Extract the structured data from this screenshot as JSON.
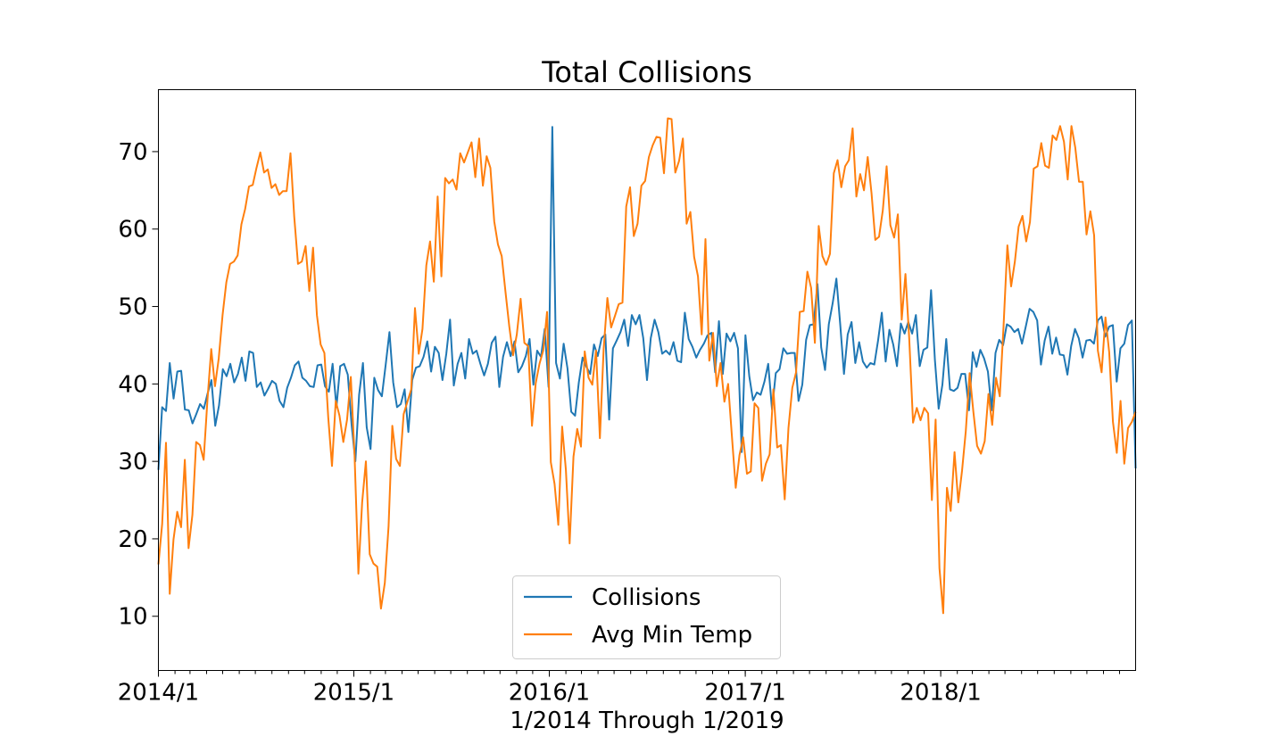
{
  "chart_data": {
    "type": "line",
    "title": "Total Collisions",
    "xlabel": "1/2014 Through 1/2019",
    "ylabel": "",
    "x_start": "2014-01-01",
    "x_end": "2018-12-31",
    "sample_interval": "weekly",
    "ylim": [
      3,
      78
    ],
    "yticks": [
      10,
      20,
      30,
      40,
      50,
      60,
      70
    ],
    "xticks": [
      {
        "label": "2014/1",
        "date": "2014-01-01"
      },
      {
        "label": "2015/1",
        "date": "2015-01-01"
      },
      {
        "label": "2016/1",
        "date": "2016-01-01"
      },
      {
        "label": "2017/1",
        "date": "2017-01-01"
      },
      {
        "label": "2018/1",
        "date": "2018-01-01"
      }
    ],
    "grid": false,
    "legend_position": "bottom-center",
    "series": [
      {
        "name": "Collisions",
        "color": "#1f77b4",
        "values": [
          28.9,
          37.0,
          36.5,
          42.7,
          38.1,
          41.6,
          41.7,
          36.7,
          36.6,
          34.9,
          36.1,
          37.4,
          36.8,
          38.8,
          40.5,
          34.6,
          37.2,
          41.9,
          41.0,
          42.6,
          40.2,
          41.3,
          43.4,
          40.4,
          44.2,
          44.0,
          39.6,
          40.2,
          38.5,
          39.4,
          40.4,
          40.0,
          37.8,
          37.0,
          39.5,
          40.8,
          42.4,
          42.9,
          40.8,
          40.4,
          39.7,
          39.6,
          42.4,
          42.5,
          39.7,
          39.0,
          42.6,
          37.0,
          42.3,
          42.6,
          41.2,
          34.7,
          30.0,
          38.6,
          42.7,
          34.4,
          31.6,
          40.8,
          39.2,
          38.4,
          42.5,
          46.7,
          40.2,
          37.0,
          37.4,
          39.3,
          33.8,
          40.5,
          42.1,
          42.3,
          43.5,
          45.5,
          41.6,
          44.8,
          44.0,
          40.5,
          43.9,
          48.3,
          39.8,
          42.6,
          44.0,
          40.7,
          45.8,
          43.9,
          44.3,
          42.6,
          41.1,
          42.6,
          45.3,
          46.1,
          39.6,
          43.5,
          45.4,
          43.6,
          45.5,
          41.5,
          42.3,
          43.6,
          45.8,
          39.9,
          44.3,
          43.5,
          47.1,
          39.6,
          73.2,
          42.7,
          40.7,
          45.2,
          42.0,
          36.4,
          35.9,
          40.2,
          43.4,
          42.2,
          41.3,
          45.1,
          43.6,
          45.9,
          46.4,
          35.4,
          44.6,
          45.6,
          46.7,
          48.3,
          44.9,
          48.9,
          47.7,
          48.9,
          45.9,
          40.5,
          45.9,
          48.3,
          46.7,
          43.9,
          44.3,
          43.8,
          45.4,
          43.0,
          42.8,
          49.2,
          45.8,
          44.8,
          43.4,
          44.4,
          45.2,
          46.3,
          46.6,
          41.5,
          48.1,
          41.3,
          46.5,
          45.5,
          46.6,
          44.6,
          31.2,
          46.3,
          41.0,
          37.9,
          38.9,
          38.6,
          40.3,
          42.6,
          36.7,
          41.4,
          41.9,
          44.6,
          43.9,
          44.0,
          44.0,
          37.8,
          39.9,
          45.7,
          47.6,
          47.7,
          52.9,
          44.7,
          41.8,
          47.7,
          50.4,
          53.6,
          47.7,
          41.3,
          46.4,
          48.0,
          42.7,
          45.4,
          42.9,
          42.1,
          42.7,
          42.5,
          45.6,
          49.2,
          42.9,
          47.0,
          45.1,
          42.3,
          47.8,
          46.5,
          48.0,
          46.5,
          48.9,
          42.3,
          44.4,
          44.7,
          52.1,
          43.1,
          36.8,
          39.9,
          45.8,
          39.3,
          39.1,
          39.5,
          41.3,
          41.3,
          36.6,
          44.1,
          42.2,
          44.4,
          43.3,
          41.6,
          36.6,
          44.0,
          45.7,
          45.0,
          47.7,
          47.4,
          46.7,
          47.1,
          45.2,
          47.4,
          49.7,
          49.3,
          48.2,
          42.5,
          45.6,
          47.4,
          43.9,
          46.0,
          43.8,
          43.7,
          41.2,
          44.9,
          47.1,
          45.9,
          43.4,
          45.6,
          45.7,
          45.2,
          48.2,
          48.7,
          46.1,
          47.4,
          47.6,
          40.3,
          44.6,
          45.2,
          47.6,
          48.2,
          29.1
        ]
      },
      {
        "name": "Avg Min Temp",
        "color": "#ff7f0e",
        "values": [
          16.7,
          21.9,
          32.4,
          12.9,
          19.9,
          23.5,
          21.5,
          30.2,
          18.8,
          23.1,
          32.5,
          32.1,
          30.2,
          38.0,
          44.5,
          39.7,
          43.3,
          48.9,
          53.1,
          55.5,
          55.8,
          56.6,
          60.6,
          62.6,
          65.5,
          65.7,
          67.9,
          69.9,
          67.3,
          67.7,
          65.3,
          65.8,
          64.4,
          64.9,
          64.9,
          69.8,
          61.6,
          55.5,
          55.8,
          57.8,
          52.0,
          57.6,
          48.9,
          45.1,
          44.0,
          35.7,
          29.4,
          37.8,
          35.9,
          32.5,
          35.4,
          40.9,
          30.8,
          15.5,
          24.7,
          30.0,
          18.0,
          16.8,
          16.4,
          11.0,
          14.3,
          21.6,
          34.6,
          30.3,
          29.4,
          36.1,
          37.7,
          39.3,
          49.8,
          43.9,
          47.1,
          55.3,
          58.4,
          53.2,
          64.2,
          53.9,
          66.6,
          65.9,
          66.4,
          65.1,
          69.8,
          68.6,
          69.9,
          71.2,
          66.7,
          71.7,
          65.6,
          69.4,
          67.9,
          61.0,
          58.0,
          56.5,
          51.8,
          47.4,
          43.7,
          46.4,
          51.0,
          45.3,
          44.9,
          34.6,
          40.1,
          42.6,
          44.3,
          49.3,
          29.9,
          27.1,
          21.8,
          34.5,
          28.9,
          19.4,
          30.6,
          34.2,
          31.9,
          44.2,
          40.8,
          39.9,
          44.3,
          33.0,
          44.5,
          51.1,
          47.3,
          48.8,
          50.3,
          50.5,
          62.9,
          65.4,
          59.1,
          60.7,
          65.6,
          66.2,
          69.3,
          70.8,
          71.9,
          71.8,
          67.2,
          74.3,
          74.2,
          67.3,
          68.8,
          71.7,
          60.7,
          62.2,
          56.4,
          53.9,
          46.4,
          58.7,
          43.0,
          46.6,
          39.7,
          42.7,
          37.7,
          40.0,
          33.3,
          26.6,
          30.8,
          33.1,
          28.4,
          28.7,
          37.5,
          36.9,
          27.5,
          29.7,
          30.9,
          39.3,
          31.8,
          32.1,
          25.1,
          34.3,
          39.5,
          41.5,
          49.3,
          49.4,
          54.5,
          52.4,
          45.3,
          60.4,
          56.5,
          55.4,
          56.8,
          67.2,
          68.9,
          65.4,
          68.1,
          68.9,
          73.0,
          64.2,
          67.1,
          65.0,
          69.3,
          64.6,
          58.6,
          59.0,
          62.4,
          68.1,
          60.5,
          58.9,
          61.9,
          48.3,
          54.2,
          45.9,
          35.0,
          36.9,
          35.3,
          36.9,
          36.2,
          25.0,
          35.4,
          16.2,
          10.4,
          26.6,
          23.6,
          31.2,
          24.7,
          28.8,
          33.9,
          41.4,
          36.4,
          32.0,
          31.0,
          32.6,
          38.7,
          34.7,
          40.8,
          38.4,
          47.4,
          57.9,
          52.6,
          55.8,
          60.3,
          61.7,
          58.4,
          60.9,
          67.8,
          68.1,
          71.1,
          68.2,
          67.9,
          72.1,
          71.5,
          73.3,
          71.3,
          66.4,
          73.3,
          70.5,
          66.1,
          66.1,
          59.3,
          62.3,
          59.2,
          44.3,
          41.5,
          48.6,
          44.1,
          35.1,
          31.1,
          37.8,
          29.7,
          34.3,
          35.1,
          36.4
        ]
      }
    ]
  }
}
